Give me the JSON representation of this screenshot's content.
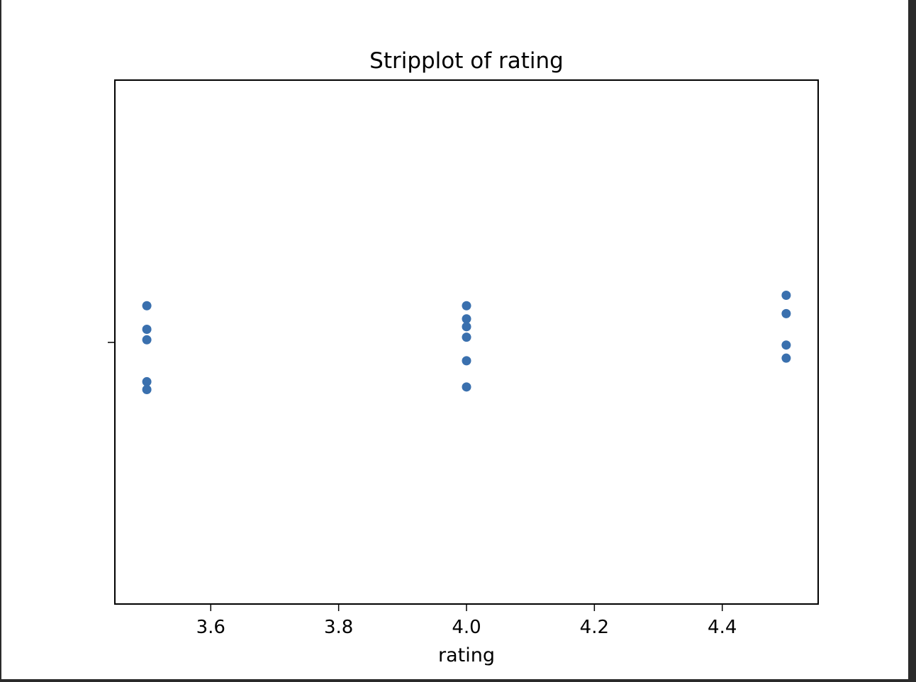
{
  "chart_data": {
    "type": "scatter",
    "title": "Stripplot of rating",
    "xlabel": "rating",
    "ylabel": "",
    "xlim": [
      3.45,
      4.55
    ],
    "x_ticks": [
      "3.6",
      "3.8",
      "4.0",
      "4.2",
      "4.4"
    ],
    "x_tick_values": [
      3.6,
      3.8,
      4.0,
      4.2,
      4.4
    ],
    "grid": false,
    "legend": "none",
    "point_color": "#3a70ae",
    "series": [
      {
        "x": [
          3.5,
          3.5,
          3.5,
          3.5,
          3.5,
          4.0,
          4.0,
          4.0,
          4.0,
          4.0,
          4.0,
          4.5,
          4.5,
          4.5,
          4.5
        ],
        "jitter": [
          0.14,
          0.05,
          0.01,
          -0.15,
          -0.18,
          0.14,
          0.09,
          0.06,
          0.02,
          -0.07,
          -0.17,
          0.18,
          0.11,
          -0.01,
          -0.06
        ]
      }
    ]
  }
}
